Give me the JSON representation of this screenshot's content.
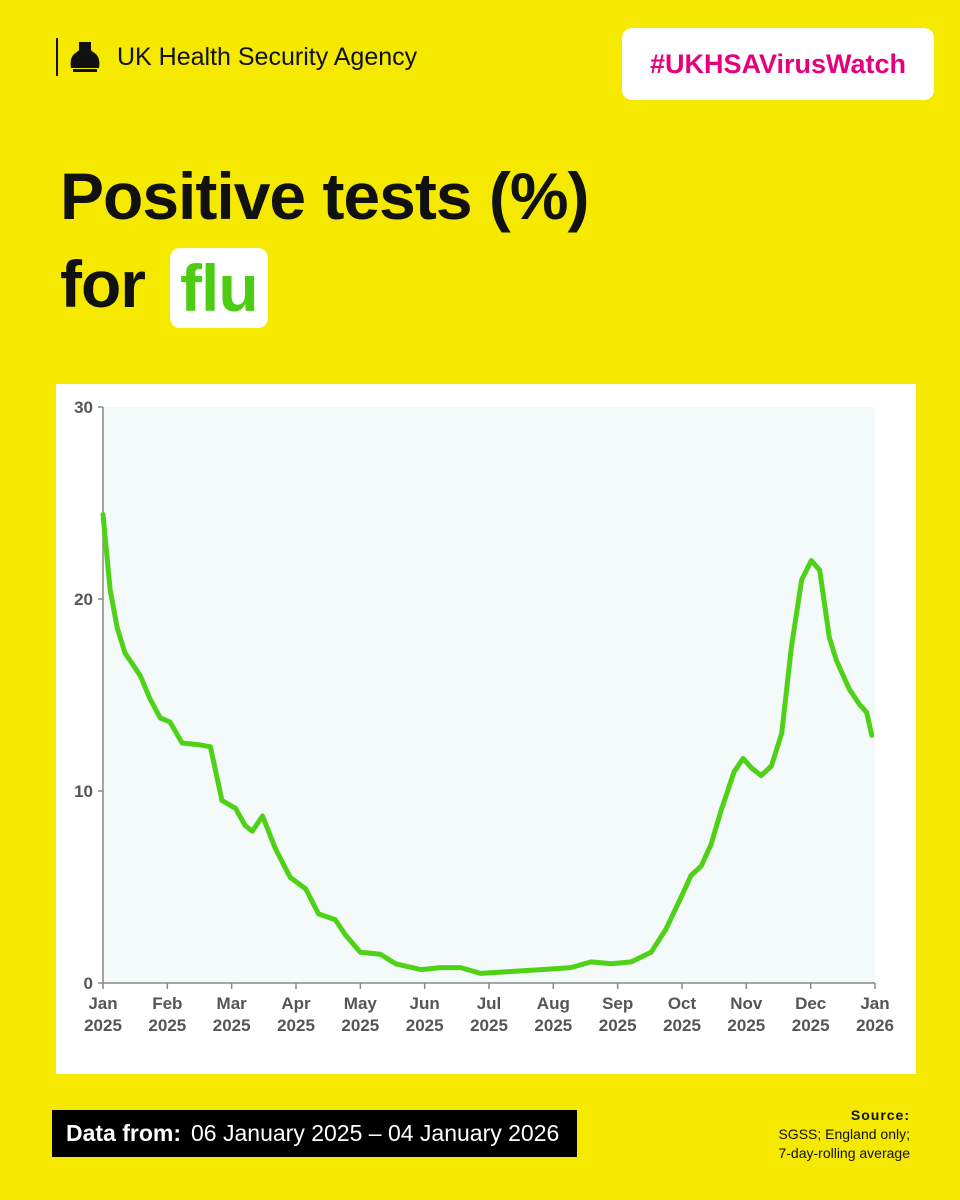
{
  "header": {
    "agency": "UK Health Security Agency",
    "hashtag": "#UKHSAVirusWatch"
  },
  "chart_data": {
    "type": "line",
    "title": {
      "line1": "Positive tests (%)",
      "line2": "for",
      "highlight": "flu"
    },
    "color": "#4fd118",
    "x": [
      0,
      0.11,
      0.22,
      0.34,
      0.58,
      0.73,
      0.89,
      1.04,
      1.23,
      1.51,
      1.67,
      1.85,
      2.06,
      2.21,
      2.32,
      2.48,
      2.68,
      2.91,
      3.15,
      3.35,
      3.61,
      3.77,
      4.0,
      4.31,
      4.55,
      4.94,
      5.25,
      5.56,
      5.87,
      6.34,
      6.81,
      7.27,
      7.59,
      7.9,
      8.21,
      8.52,
      8.75,
      8.99,
      9.14,
      9.3,
      9.45,
      9.61,
      9.81,
      9.95,
      10.08,
      10.23,
      10.39,
      10.55,
      10.7,
      10.86,
      11.01,
      11.14,
      11.29,
      11.4,
      11.6,
      11.76,
      11.87,
      11.95
    ],
    "values": [
      24.4,
      20.5,
      18.5,
      17.2,
      16.0,
      14.8,
      13.8,
      13.6,
      12.5,
      12.4,
      12.3,
      9.5,
      9.1,
      8.2,
      7.9,
      8.7,
      7.0,
      5.5,
      4.9,
      3.6,
      3.3,
      2.5,
      1.6,
      1.5,
      1.0,
      0.7,
      0.8,
      0.8,
      0.5,
      0.6,
      0.7,
      0.8,
      1.1,
      1.0,
      1.1,
      1.6,
      2.8,
      4.5,
      5.6,
      6.1,
      7.2,
      9.0,
      11.0,
      11.7,
      11.2,
      10.8,
      11.3,
      13.0,
      17.5,
      21.0,
      22.0,
      21.5,
      18.0,
      16.8,
      15.3,
      14.5,
      14.1,
      12.9
    ],
    "xlim": [
      0,
      12
    ],
    "xticks": [
      {
        "value": 0,
        "label": "Jan 2025"
      },
      {
        "value": 1,
        "label": "Feb 2025"
      },
      {
        "value": 2,
        "label": "Mar 2025"
      },
      {
        "value": 3,
        "label": "Apr 2025"
      },
      {
        "value": 4,
        "label": "May 2025"
      },
      {
        "value": 5,
        "label": "Jun 2025"
      },
      {
        "value": 6,
        "label": "Jul 2025"
      },
      {
        "value": 7,
        "label": "Aug 2025"
      },
      {
        "value": 8,
        "label": "Sep 2025"
      },
      {
        "value": 9,
        "label": "Oct 2025"
      },
      {
        "value": 10,
        "label": "Nov 2025"
      },
      {
        "value": 11,
        "label": "Dec 2025"
      },
      {
        "value": 12,
        "label": "Jan 2026"
      }
    ],
    "ylim": [
      0,
      30
    ],
    "yticks": [
      0,
      10,
      20,
      30
    ],
    "grid": false
  },
  "footer": {
    "range_label": "Data from:",
    "range": "06 January 2025 – 04 January 2026",
    "source_label": "Source:",
    "source_lines": [
      "SGSS; England only;",
      "7-day-rolling average"
    ]
  }
}
